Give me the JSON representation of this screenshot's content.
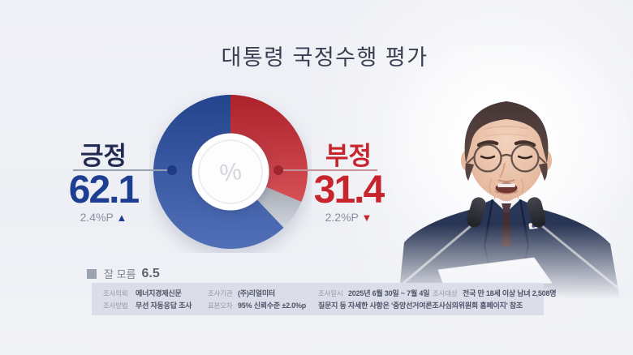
{
  "title": "대통령 국정수행 평가",
  "chart_data": {
    "type": "pie",
    "subtype": "donut",
    "title": "대통령 국정수행 평가",
    "direction": "clockwise",
    "start_angle_deg": 0,
    "center_symbol": "%",
    "slices": [
      {
        "label": "부정",
        "value": 31.4,
        "color": "#cd2932"
      },
      {
        "label": "잘 모름",
        "value": 6.5,
        "color": "#c6cbd5"
      },
      {
        "label": "긍정",
        "value": 62.1,
        "color": "#2b51a9"
      }
    ]
  },
  "callouts": {
    "positive": {
      "label": "긍정",
      "value": "62.1",
      "change": "2.4%P",
      "arrow": "▲",
      "accent": "#1e3e92"
    },
    "negative": {
      "label": "부정",
      "value": "31.4",
      "change": "2.2%P",
      "arrow": "▼",
      "accent": "#c8242e"
    }
  },
  "legend": {
    "label": "잘 모름",
    "value": "6.5",
    "swatch_color": "#9ca2af"
  },
  "survey": {
    "row1": [
      {
        "label": "조사의뢰",
        "value": "에너지경제신문"
      },
      {
        "label": "조사기관",
        "value": "(주)리얼미터"
      },
      {
        "label": "조사일시",
        "value": "2025년 6월 30일 ~ 7월 4일"
      },
      {
        "label": "조사대상",
        "value": "전국 만 18세 이상 남녀 2,508명"
      }
    ],
    "row2": [
      {
        "label": "조사방법",
        "value": "무선 자동응답 조사"
      },
      {
        "label": "표본오차",
        "value": "95% 신뢰수준 ±2.0%p"
      },
      {
        "label": "",
        "value": "질문지 등 자세한 사항은 '중앙선거여론조사심의위원회 홈페이지' 참조"
      }
    ]
  }
}
